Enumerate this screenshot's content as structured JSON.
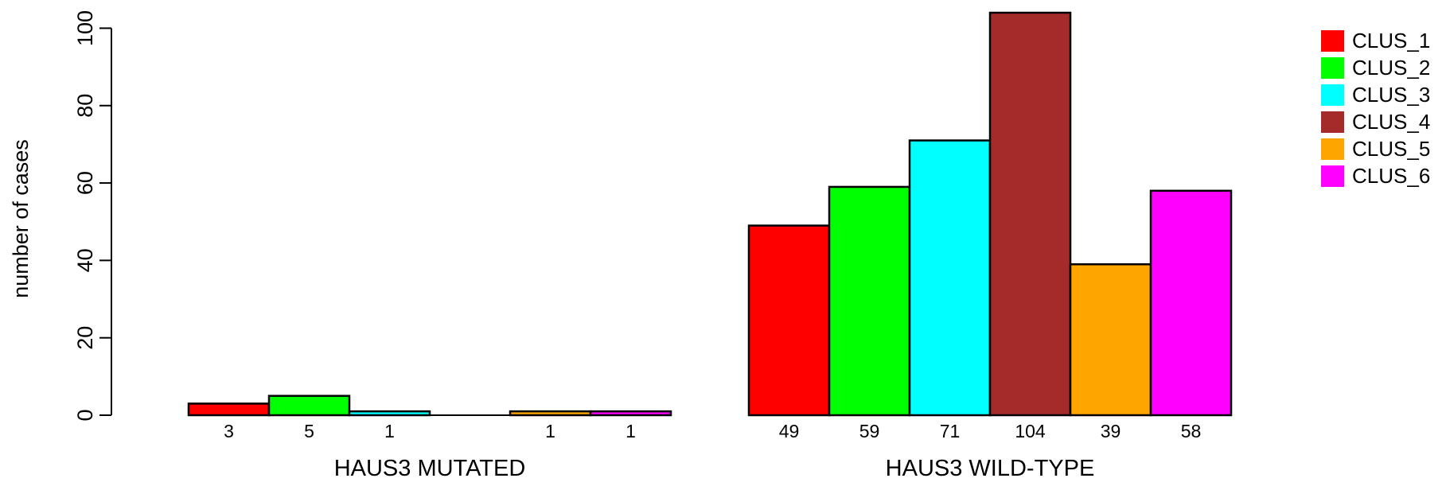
{
  "chart_data": {
    "type": "bar",
    "ylabel": "number of cases",
    "ylim": [
      0,
      104
    ],
    "yticks": [
      0,
      20,
      40,
      60,
      80,
      100
    ],
    "groups": [
      {
        "label": "HAUS3 MUTATED",
        "values": [
          3,
          5,
          1,
          0,
          1,
          1
        ],
        "value_labels": [
          "3",
          "5",
          "1",
          "",
          "1",
          "1"
        ]
      },
      {
        "label": "HAUS3 WILD-TYPE",
        "values": [
          49,
          59,
          71,
          104,
          39,
          58
        ],
        "value_labels": [
          "49",
          "59",
          "71",
          "104",
          "39",
          "58"
        ]
      }
    ],
    "series": [
      {
        "name": "CLUS_1",
        "color": "#ff0000"
      },
      {
        "name": "CLUS_2",
        "color": "#00ff00"
      },
      {
        "name": "CLUS_3",
        "color": "#00ffff"
      },
      {
        "name": "CLUS_4",
        "color": "#a52a2a"
      },
      {
        "name": "CLUS_5",
        "color": "#ffa500"
      },
      {
        "name": "CLUS_6",
        "color": "#ff00ff"
      }
    ],
    "legend_position": "top-right",
    "grid": false
  }
}
